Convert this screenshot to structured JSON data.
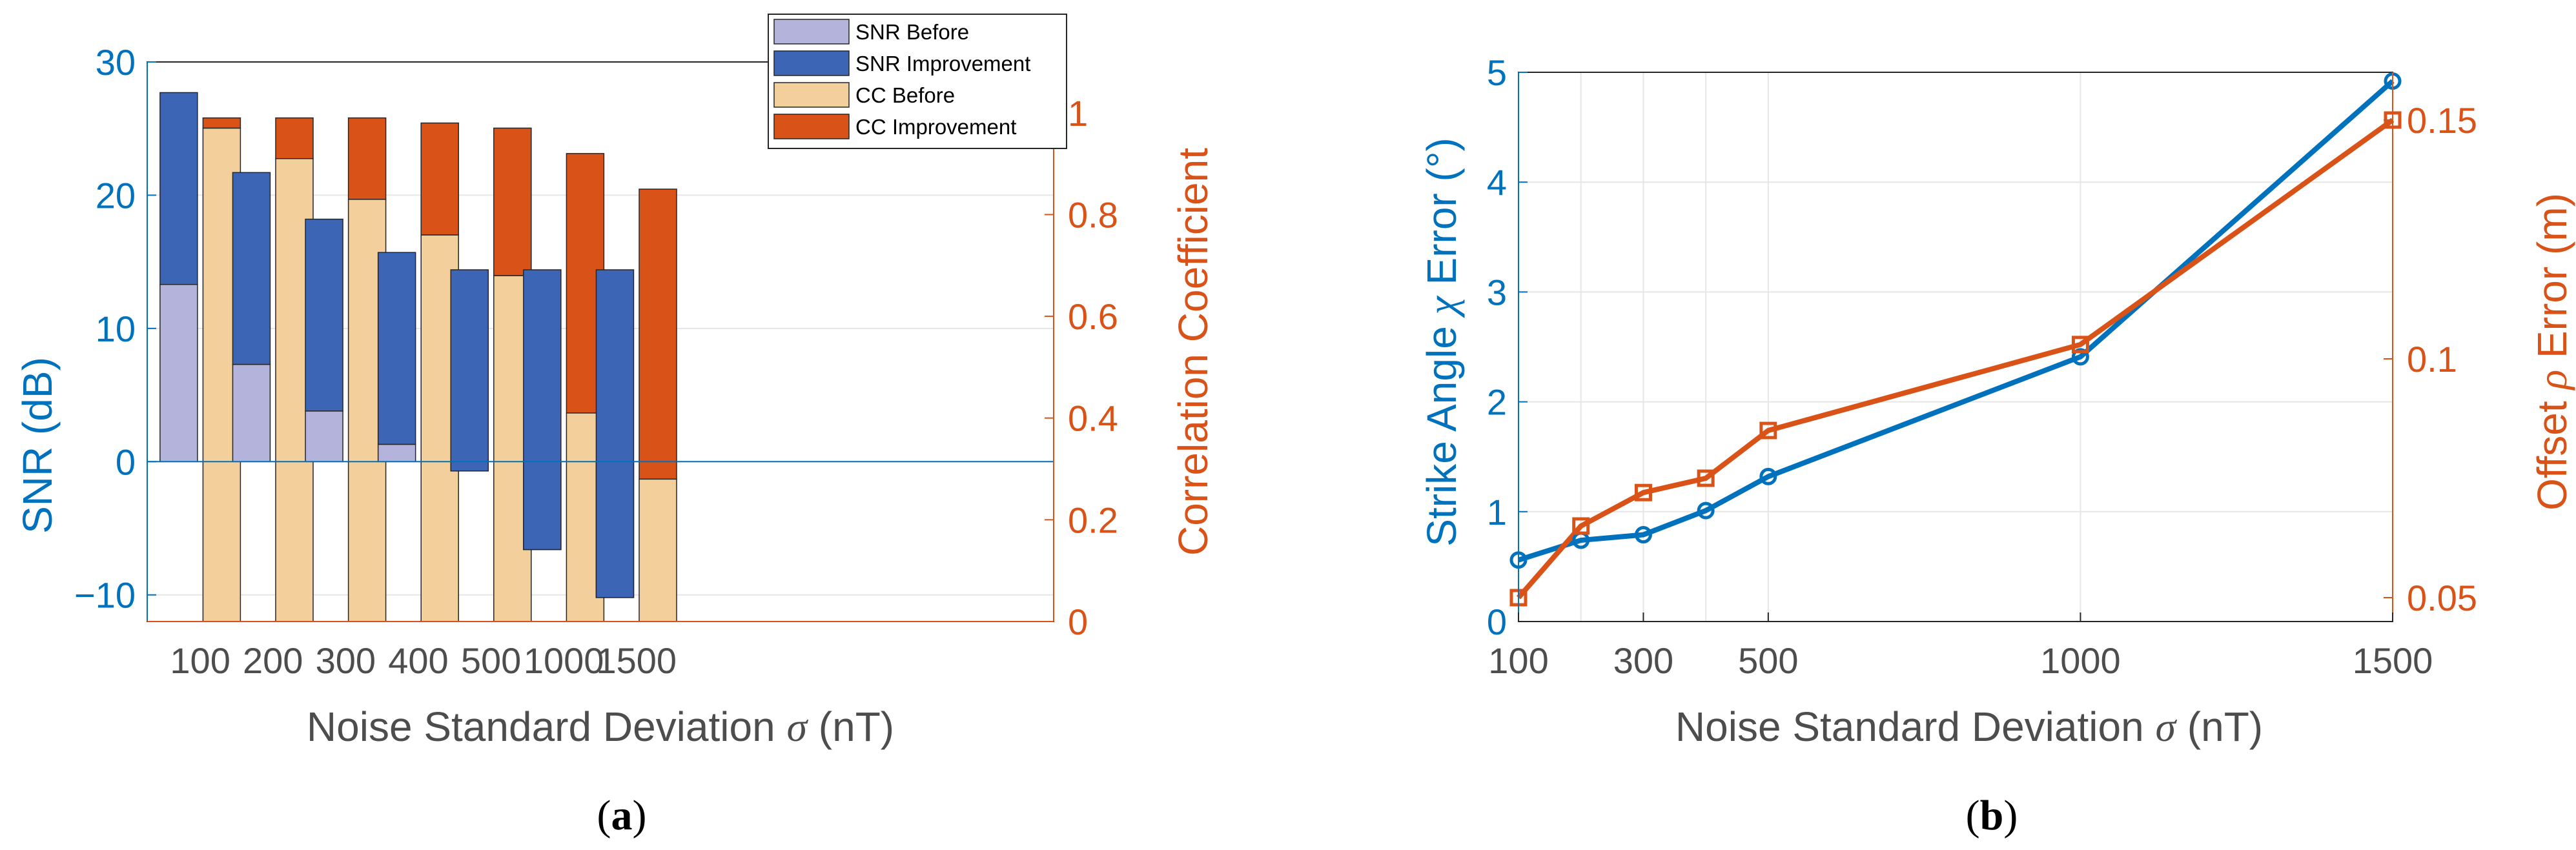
{
  "colors": {
    "blue": "#0072BD",
    "red": "#D95319",
    "snr_before": "#B3B3DB",
    "snr_improvement": "#3D65B5",
    "cc_before": "#F3CF9B",
    "cc_improvement": "#D95319",
    "grid": "#E6E6E6",
    "tick_text": "#4D4D4D"
  },
  "chart_data": [
    {
      "panel": "a",
      "type": "bar",
      "caption_label": "a",
      "xlabel_prefix": "Noise Standard Deviation ",
      "xlabel_symbol": "σ",
      "xlabel_suffix": " (nT)",
      "categories": [
        "100",
        "200",
        "300",
        "400",
        "500",
        "1000",
        "1500"
      ],
      "left_axis": {
        "label": "SNR (dB)",
        "ylim": [
          -12,
          30
        ],
        "ticks": [
          "−10",
          "0",
          "10",
          "20",
          "30"
        ],
        "tick_values": [
          -10,
          0,
          10,
          20,
          30
        ]
      },
      "right_axis": {
        "label": "Correlation Coefficient",
        "ylim": [
          0,
          1.1
        ],
        "ticks": [
          "0",
          "0.2",
          "0.4",
          "0.6",
          "0.8",
          "1"
        ],
        "tick_values": [
          0,
          0.2,
          0.4,
          0.6,
          0.8,
          1
        ]
      },
      "series": [
        {
          "name": "SNR Before",
          "axis": "left",
          "values": [
            13.3,
            7.3,
            3.8,
            1.3,
            -0.7,
            -6.6,
            -10.2
          ]
        },
        {
          "name": "SNR Improvement",
          "axis": "left",
          "values": [
            14.4,
            14.4,
            14.4,
            14.4,
            15.1,
            21.0,
            24.6
          ]
        },
        {
          "name": "CC Before",
          "axis": "right",
          "values": [
            0.97,
            0.91,
            0.83,
            0.76,
            0.68,
            0.41,
            0.28
          ]
        },
        {
          "name": "CC Improvement",
          "axis": "right",
          "values": [
            0.02,
            0.08,
            0.16,
            0.22,
            0.29,
            0.51,
            0.57
          ]
        }
      ],
      "legend": [
        "SNR Before",
        "SNR Improvement",
        "CC Before",
        "CC Improvement"
      ],
      "legend_position": "top-right"
    },
    {
      "panel": "b",
      "type": "line",
      "caption_label": "b",
      "xlabel_prefix": "Noise Standard Deviation ",
      "xlabel_symbol": "σ",
      "xlabel_suffix": " (nT)",
      "x": [
        100,
        200,
        300,
        400,
        500,
        1000,
        1500
      ],
      "xlim": [
        100,
        1500
      ],
      "x_ticks": [
        "100",
        "300",
        "500",
        "1000",
        "1500"
      ],
      "x_tick_values": [
        100,
        300,
        500,
        1000,
        1500
      ],
      "left_axis": {
        "label_prefix": "Strike Angle ",
        "label_symbol": "χ",
        "label_suffix": " Error (°)",
        "ylim": [
          0,
          5
        ],
        "ticks": [
          "0",
          "1",
          "2",
          "3",
          "4",
          "5"
        ],
        "tick_values": [
          0,
          1,
          2,
          3,
          4,
          5
        ]
      },
      "right_axis": {
        "label_prefix": "Offset ",
        "label_symbol": "ρ",
        "label_suffix": " Error (m)",
        "ylim": [
          0.045,
          0.16
        ],
        "ticks": [
          "0.05",
          "0.1",
          "0.15"
        ],
        "tick_values": [
          0.05,
          0.1,
          0.15
        ]
      },
      "series": [
        {
          "name": "Strike Angle Error",
          "axis": "left",
          "marker": "circle",
          "values": [
            0.56,
            0.74,
            0.79,
            1.01,
            1.32,
            2.41,
            4.92
          ]
        },
        {
          "name": "Offset Error",
          "axis": "right",
          "marker": "square",
          "values": [
            0.05,
            0.065,
            0.072,
            0.075,
            0.085,
            0.103,
            0.15
          ]
        }
      ]
    }
  ]
}
